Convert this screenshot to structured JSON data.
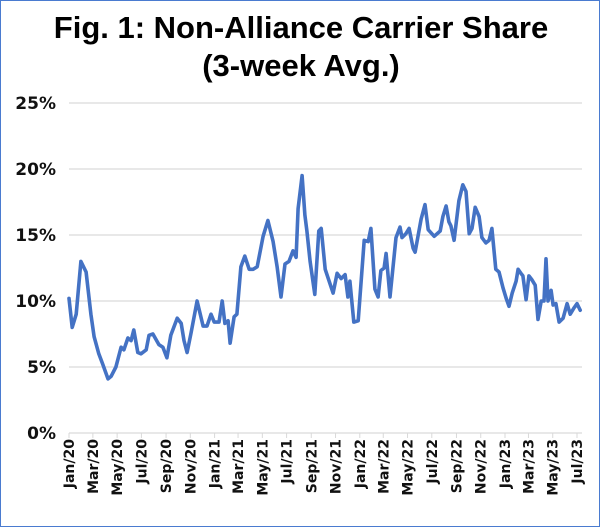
{
  "chart_data": {
    "type": "line",
    "title": "Fig. 1: Non-Alliance Carrier Share",
    "subtitle": "(3-week Avg.)",
    "xlabel": "",
    "ylabel": "",
    "ylim": [
      0,
      25
    ],
    "xlim": [
      "2020-01-01",
      "2023-07-15"
    ],
    "grid": true,
    "color": "#4472c4",
    "y_ticks": [
      "0%",
      "5%",
      "10%",
      "15%",
      "20%",
      "25%"
    ],
    "x_ticks": [
      "Jan/20",
      "Mar/20",
      "May/20",
      "Jul/20",
      "Sep/20",
      "Nov/20",
      "Jan/21",
      "Mar/21",
      "May/21",
      "Jul/21",
      "Sep/21",
      "Nov/21",
      "Jan/22",
      "Mar/22",
      "May/22",
      "Jul/22",
      "Sep/22",
      "Nov/22",
      "Jan/23",
      "Mar/23",
      "May/23",
      "Jul/23"
    ],
    "x": [
      "2020-01-01",
      "2020-01-09",
      "2020-01-19",
      "2020-01-31",
      "2020-02-13",
      "2020-02-25",
      "2020-03-04",
      "2020-03-16",
      "2020-03-26",
      "2020-04-08",
      "2020-04-16",
      "2020-04-28",
      "2020-05-11",
      "2020-05-18",
      "2020-05-28",
      "2020-06-05",
      "2020-06-12",
      "2020-06-22",
      "2020-06-30",
      "2020-07-13",
      "2020-07-20",
      "2020-07-30",
      "2020-08-14",
      "2020-08-24",
      "2020-09-03",
      "2020-09-13",
      "2020-09-29",
      "2020-10-09",
      "2020-10-16",
      "2020-10-24",
      "2020-11-03",
      "2020-11-18",
      "2020-12-03",
      "2020-12-13",
      "2020-12-23",
      "2020-12-31",
      "2021-01-12",
      "2021-01-20",
      "2021-01-27",
      "2021-02-04",
      "2021-02-09",
      "2021-02-19",
      "2021-02-26",
      "2021-03-08",
      "2021-03-18",
      "2021-03-29",
      "2021-04-08",
      "2021-04-18",
      "2021-05-03",
      "2021-05-15",
      "2021-05-28",
      "2021-06-07",
      "2021-06-17",
      "2021-06-27",
      "2021-07-07",
      "2021-07-17",
      "2021-07-25",
      "2021-07-30",
      "2021-08-09",
      "2021-08-16",
      "2021-08-21",
      "2021-08-29",
      "2021-09-10",
      "2021-09-20",
      "2021-09-26",
      "2021-10-06",
      "2021-10-26",
      "2021-11-05",
      "2021-11-15",
      "2021-11-25",
      "2021-12-02",
      "2021-12-07",
      "2021-12-17",
      "2021-12-28",
      "2022-01-12",
      "2022-01-22",
      "2022-01-29",
      "2022-02-08",
      "2022-02-16",
      "2022-02-23",
      "2022-03-03",
      "2022-03-08",
      "2022-03-18",
      "2022-04-02",
      "2022-04-12",
      "2022-04-17",
      "2022-04-27",
      "2022-05-05",
      "2022-05-15",
      "2022-05-20",
      "2022-06-04",
      "2022-06-14",
      "2022-06-22",
      "2022-07-07",
      "2022-07-22",
      "2022-07-29",
      "2022-08-06",
      "2022-08-13",
      "2022-08-18",
      "2022-08-26",
      "2022-09-07",
      "2022-09-17",
      "2022-09-25",
      "2022-10-03",
      "2022-10-10",
      "2022-10-18",
      "2022-10-28",
      "2022-11-04",
      "2022-11-14",
      "2022-11-22",
      "2022-11-29",
      "2022-12-09",
      "2022-12-17",
      "2022-12-27",
      "2023-01-04",
      "2023-01-11",
      "2023-01-19",
      "2023-01-29",
      "2023-02-03",
      "2023-02-10",
      "2023-02-15",
      "2023-02-23",
      "2023-03-02",
      "2023-03-10",
      "2023-03-18",
      "2023-03-25",
      "2023-04-02",
      "2023-04-09",
      "2023-04-14",
      "2023-04-19",
      "2023-04-27",
      "2023-05-02",
      "2023-05-09",
      "2023-05-17",
      "2023-05-27",
      "2023-06-06",
      "2023-06-14",
      "2023-06-24",
      "2023-07-01",
      "2023-07-09"
    ],
    "values": [
      10.2,
      8.0,
      9.0,
      13.0,
      12.2,
      9.0,
      7.3,
      6.0,
      5.2,
      4.1,
      4.3,
      5.0,
      6.5,
      6.3,
      7.2,
      7.0,
      7.8,
      6.1,
      6.0,
      6.3,
      7.4,
      7.5,
      6.7,
      6.5,
      5.7,
      7.4,
      8.7,
      8.3,
      7.0,
      6.1,
      7.6,
      10.0,
      8.1,
      8.1,
      9.0,
      8.4,
      8.4,
      10.0,
      8.3,
      8.5,
      6.8,
      8.8,
      9.0,
      12.6,
      13.4,
      12.4,
      12.4,
      12.6,
      14.9,
      16.1,
      14.5,
      12.6,
      10.3,
      12.8,
      13.0,
      13.8,
      13.3,
      17.0,
      19.5,
      16.5,
      15.3,
      13.0,
      10.5,
      15.3,
      15.5,
      12.4,
      10.6,
      12.1,
      11.7,
      12.0,
      10.3,
      11.5,
      8.4,
      8.5,
      14.6,
      14.5,
      15.5,
      10.9,
      10.3,
      12.3,
      12.5,
      13.6,
      10.3,
      14.8,
      15.6,
      14.8,
      15.1,
      15.5,
      14.0,
      13.7,
      16.2,
      17.3,
      15.4,
      14.9,
      15.3,
      16.4,
      17.2,
      16.0,
      15.7,
      14.6,
      17.6,
      18.8,
      18.3,
      15.1,
      15.5,
      17.1,
      16.4,
      14.8,
      14.4,
      14.6,
      15.5,
      12.4,
      12.2,
      11.0,
      10.2,
      9.6,
      10.6,
      11.5,
      12.4,
      12.1,
      11.9,
      10.1,
      11.9,
      11.6,
      11.2,
      8.6,
      10.0,
      10.0,
      13.2,
      10.0,
      10.8,
      9.7,
      9.8,
      8.4,
      8.7,
      9.8,
      9.0,
      9.5,
      9.8,
      9.3
    ]
  }
}
